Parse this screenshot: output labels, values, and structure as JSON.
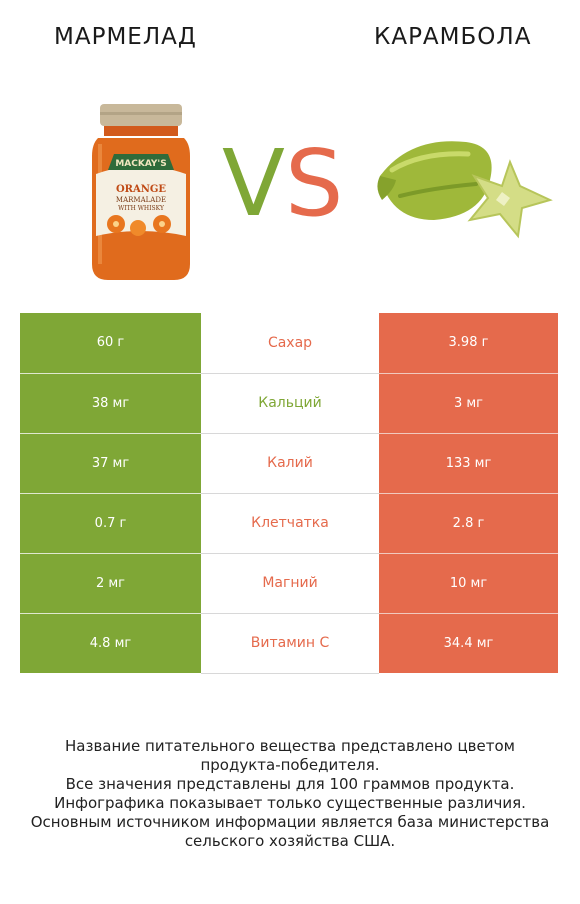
{
  "header": {
    "left_title": "МАРМЕЛАД",
    "right_title": "КАРАМБОЛА",
    "vs_v": "V",
    "vs_s": "S",
    "jar_label_brand": "MACKAY'S",
    "jar_label_line1": "ORANGE",
    "jar_label_line2": "MARMALADE",
    "jar_label_line3": "WITH WHISKY"
  },
  "colors": {
    "left": "#7fa736",
    "right": "#e56a4c"
  },
  "rows": [
    {
      "left": "60 г",
      "name": "Сахар",
      "right": "3.98 г",
      "winner": "right"
    },
    {
      "left": "38 мг",
      "name": "Кальций",
      "right": "3 мг",
      "winner": "left"
    },
    {
      "left": "37 мг",
      "name": "Калий",
      "right": "133 мг",
      "winner": "right"
    },
    {
      "left": "0.7 г",
      "name": "Клетчатка",
      "right": "2.8 г",
      "winner": "right"
    },
    {
      "left": "2 мг",
      "name": "Магний",
      "right": "10 мг",
      "winner": "right"
    },
    {
      "left": "4.8 мг",
      "name": "Витамин C",
      "right": "34.4 мг",
      "winner": "right"
    }
  ],
  "notes": [
    "Название питательного вещества представлено цветом",
    "продукта-победителя.",
    "Все значения представлены для 100 граммов продукта.",
    "Инфографика показывает только существенные различия.",
    "Основным источником информации является база министерства",
    "сельского хозяйства США."
  ]
}
